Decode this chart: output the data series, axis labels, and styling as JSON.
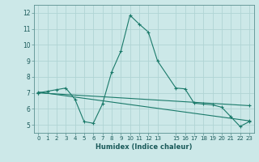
{
  "xlabel": "Humidex (Indice chaleur)",
  "bg_color": "#cce8e8",
  "grid_color": "#b0d4d4",
  "line_color": "#1a7a6a",
  "xlim": [
    -0.5,
    23.5
  ],
  "ylim": [
    4.5,
    12.5
  ],
  "yticks": [
    5,
    6,
    7,
    8,
    9,
    10,
    11,
    12
  ],
  "xticks": [
    0,
    1,
    2,
    3,
    4,
    5,
    6,
    7,
    8,
    9,
    10,
    11,
    12,
    13,
    15,
    16,
    17,
    18,
    19,
    20,
    21,
    22,
    23
  ],
  "line1_x": [
    0,
    1,
    2,
    3,
    4,
    5,
    6,
    7,
    8,
    9,
    10,
    11,
    12,
    13,
    15,
    16,
    17,
    18,
    19,
    20,
    21,
    22,
    23
  ],
  "line1_y": [
    7.0,
    7.1,
    7.2,
    7.3,
    6.6,
    5.2,
    5.1,
    6.3,
    8.3,
    9.6,
    11.85,
    11.3,
    10.8,
    9.0,
    7.3,
    7.25,
    6.35,
    6.3,
    6.25,
    6.1,
    5.5,
    4.9,
    5.2
  ],
  "line2_x": [
    0,
    23
  ],
  "line2_y": [
    7.05,
    5.25
  ],
  "line3_x": [
    0,
    23
  ],
  "line3_y": [
    7.0,
    6.2
  ]
}
